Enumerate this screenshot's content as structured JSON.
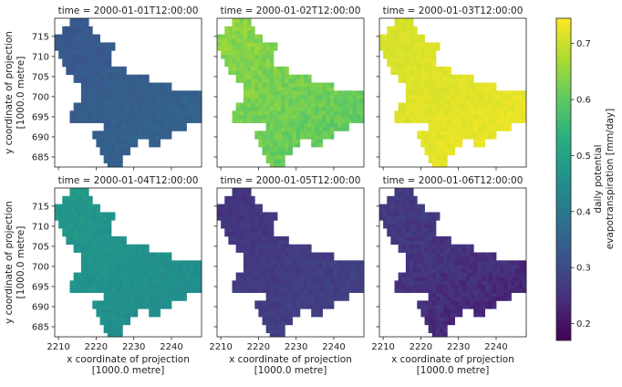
{
  "figure": {
    "title": "",
    "colorbar_label_lines": [
      "daily potential",
      "evapotranspiration [mm/day]"
    ],
    "colormap": "viridis",
    "colorbar_range": [
      0.17,
      0.745
    ],
    "colorbar_ticks": [
      "0.2",
      "0.3",
      "0.4",
      "0.5",
      "0.6",
      "0.7"
    ]
  },
  "chart_data": {
    "type": "heatmap",
    "facet_by": "time",
    "xlabel_lines": [
      "x coordinate of projection",
      "[1000.0 metre]"
    ],
    "ylabel_lines": [
      "y coordinate of projection",
      "[1000.0 metre]"
    ],
    "xlim": [
      2209,
      2248
    ],
    "ylim": [
      682.5,
      719.5
    ],
    "xticks": [
      2210,
      2220,
      2230,
      2240
    ],
    "yticks": [
      685,
      690,
      695,
      700,
      705,
      710,
      715
    ],
    "colorbar_range": [
      0.17,
      0.745
    ],
    "grid": false,
    "panels": [
      {
        "title": "time = 2000-01-01T12:00:00",
        "mean_value": 0.34,
        "min_value": 0.32,
        "max_value": 0.37
      },
      {
        "title": "time = 2000-01-02T12:00:00",
        "mean_value": 0.62,
        "min_value": 0.57,
        "max_value": 0.66
      },
      {
        "title": "time = 2000-01-03T12:00:00",
        "mean_value": 0.72,
        "min_value": 0.7,
        "max_value": 0.74
      },
      {
        "title": "time = 2000-01-04T12:00:00",
        "mean_value": 0.46,
        "min_value": 0.44,
        "max_value": 0.49
      },
      {
        "title": "time = 2000-01-05T12:00:00",
        "mean_value": 0.27,
        "min_value": 0.24,
        "max_value": 0.29
      },
      {
        "title": "time = 2000-01-06T12:00:00",
        "mean_value": 0.25,
        "min_value": 0.2,
        "max_value": 0.28
      }
    ]
  }
}
